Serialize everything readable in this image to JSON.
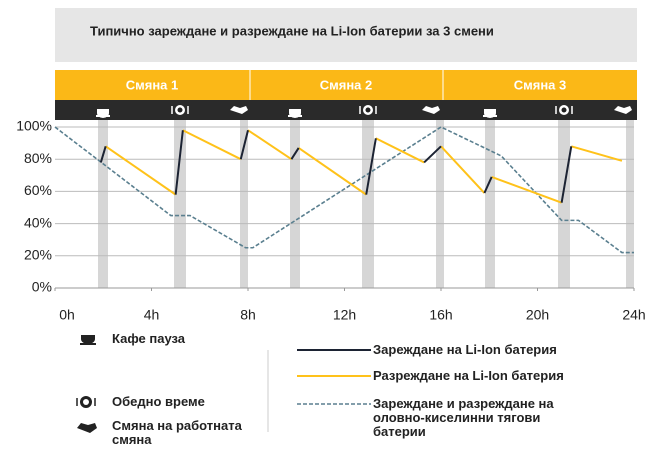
{
  "chart_data": {
    "type": "line",
    "title": "Типично зареждане и разреждане на Li-Ion батерии за 3 смени",
    "shifts": [
      "Смяна 1",
      "Смяна 2",
      "Смяна 3"
    ],
    "pauses": [
      "Кафе пауза",
      "Обедно време",
      "Смяна на работната смяна"
    ],
    "xlim": [
      0,
      24
    ],
    "ylim": [
      0,
      100
    ],
    "xticks": [
      {
        "value": 0,
        "label": "0h"
      },
      {
        "value": 4,
        "label": "4h"
      },
      {
        "value": 8,
        "label": "8h"
      },
      {
        "value": 12,
        "label": "12h"
      },
      {
        "value": 16,
        "label": "16h"
      },
      {
        "value": 20,
        "label": "20h"
      },
      {
        "value": 24,
        "label": "24h"
      }
    ],
    "yticks": [
      {
        "value": 0,
        "label": "0%"
      },
      {
        "value": 20,
        "label": "20%"
      },
      {
        "value": 40,
        "label": "40%"
      },
      {
        "value": 60,
        "label": "60%"
      },
      {
        "value": 80,
        "label": "80%"
      },
      {
        "value": 100,
        "label": "100%"
      }
    ],
    "grid": true,
    "series": [
      {
        "name": "Зареждане и разреждане на оловно-киселинни тягови батерии",
        "color": "#5a7f8f",
        "dashed": true,
        "x": [
          0,
          4.8,
          5.6,
          7.9,
          8.2,
          16,
          18.5,
          21,
          21.7,
          23.5,
          24
        ],
        "values": [
          100,
          45,
          45,
          25,
          25,
          100,
          82,
          42,
          42,
          22,
          22
        ]
      },
      {
        "name": "Разреждане на Li-Ion батерия",
        "color": "#ffc21a",
        "x": [
          2.1,
          5,
          null,
          5.3,
          7.7,
          null,
          8,
          9.8,
          null,
          10.1,
          12.9,
          null,
          13.3,
          15.3,
          null,
          16,
          17.8,
          null,
          18.1,
          21,
          null,
          21.4,
          23.5
        ],
        "values": [
          88,
          58,
          null,
          98,
          80,
          null,
          98,
          80,
          null,
          87,
          58,
          null,
          93,
          78,
          null,
          88,
          59,
          null,
          69,
          53,
          null,
          88,
          79
        ]
      },
      {
        "name": "Зареждане на Li-Ion батерия",
        "color": "#1c2333",
        "x": [
          1.9,
          2.1,
          null,
          5,
          5.3,
          null,
          7.7,
          8,
          null,
          9.8,
          10.1,
          null,
          12.9,
          13.3,
          null,
          15.3,
          16,
          null,
          17.8,
          18.1,
          null,
          21,
          21.4
        ],
        "values": [
          78,
          88,
          null,
          58,
          98,
          null,
          80,
          98,
          null,
          80,
          87,
          null,
          58,
          93,
          null,
          78,
          88,
          null,
          59,
          69,
          null,
          53,
          88
        ]
      }
    ]
  }
}
